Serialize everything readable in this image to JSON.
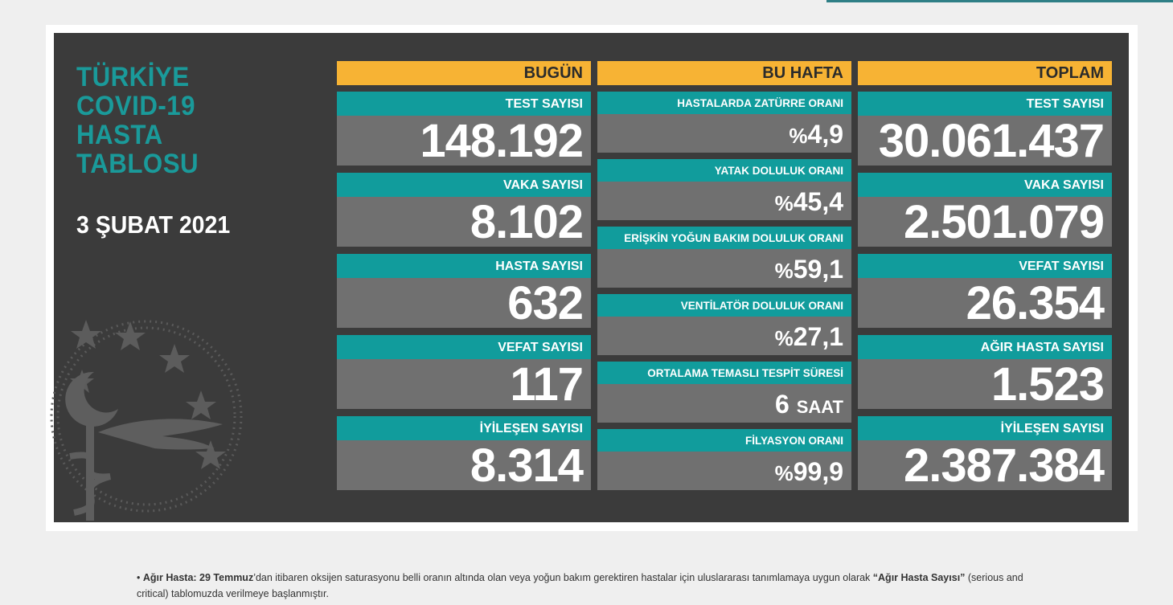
{
  "title_lines": [
    "TÜRKİYE",
    "COVID-19",
    "HASTA",
    "TABLOSU"
  ],
  "date": "3 ŞUBAT 2021",
  "columns": {
    "today": "BUGÜN",
    "week": "BU HAFTA",
    "total": "TOPLAM"
  },
  "today": [
    {
      "label": "TEST SAYISI",
      "value": "148.192"
    },
    {
      "label": "VAKA SAYISI",
      "value": "8.102"
    },
    {
      "label": "HASTA SAYISI",
      "value": "632"
    },
    {
      "label": "VEFAT SAYISI",
      "value": "117"
    },
    {
      "label": "İYİLEŞEN SAYISI",
      "value": "8.314"
    }
  ],
  "week": [
    {
      "label": "HASTALARDA ZATÜRRE ORANI",
      "prefix": "%",
      "value": "4,9",
      "unit": ""
    },
    {
      "label": "YATAK DOLULUK ORANI",
      "prefix": "%",
      "value": "45,4",
      "unit": ""
    },
    {
      "label": "ERİŞKİN YOĞUN BAKIM DOLULUK ORANI",
      "prefix": "%",
      "value": "59,1",
      "unit": ""
    },
    {
      "label": "VENTİLATÖR DOLULUK ORANI",
      "prefix": "%",
      "value": "27,1",
      "unit": ""
    },
    {
      "label": "ORTALAMA TEMASLI TESPİT SÜRESİ",
      "prefix": "",
      "value": "6",
      "unit": "SAAT"
    },
    {
      "label": "FİLYASYON ORANI",
      "prefix": "%",
      "value": "99,9",
      "unit": ""
    }
  ],
  "total": [
    {
      "label": "TEST SAYISI",
      "value": "30.061.437"
    },
    {
      "label": "VAKA SAYISI",
      "value": "2.501.079"
    },
    {
      "label": "VEFAT SAYISI",
      "value": "26.354"
    },
    {
      "label": "AĞIR HASTA SAYISI",
      "value": "1.523"
    },
    {
      "label": "İYİLEŞEN SAYISI",
      "value": "2.387.384"
    }
  ],
  "footnote": {
    "bullet": "•",
    "term": "Ağır Hasta:",
    "date_bold": "29 Temmuz",
    "text1": "’dan itibaren oksijen saturasyonu belli oranın altında olan veya yoğun bakım gerektiren hastalar için uluslararası tanımlamaya uygun olarak ",
    "quote_bold": "“Ağır Hasta Sayısı”",
    "text2": " (serious and critical) tablomuzda verilmeye başlanmıştır."
  }
}
